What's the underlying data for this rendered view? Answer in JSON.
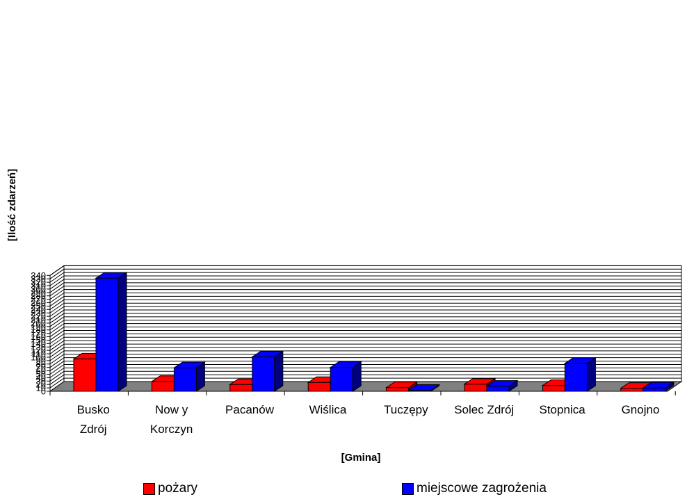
{
  "chart_data": {
    "type": "bar",
    "title": "",
    "xlabel": "[Gmina]",
    "ylabel": "[Ilość zdarzeń]",
    "ylim": [
      0,
      340
    ],
    "ytick_step": 10,
    "grid": true,
    "three_d": true,
    "legend_position": "bottom",
    "categories": [
      [
        "Busko",
        "Zdrój"
      ],
      [
        "Now y",
        "Korczyn"
      ],
      [
        "Pacanów"
      ],
      [
        "Wiślica"
      ],
      [
        "Tuczępy"
      ],
      [
        "Solec Zdrój"
      ],
      [
        "Stopnica"
      ],
      [
        "Gnojno"
      ]
    ],
    "series": [
      {
        "name": "pożary",
        "color": "#ff0000",
        "values": [
          95,
          29,
          20,
          26,
          11,
          21,
          17,
          9
        ]
      },
      {
        "name": "miejscowe zagrożenia",
        "color": "#0000ff",
        "values": [
          332,
          69,
          101,
          70,
          3,
          15,
          82,
          10
        ]
      }
    ]
  }
}
